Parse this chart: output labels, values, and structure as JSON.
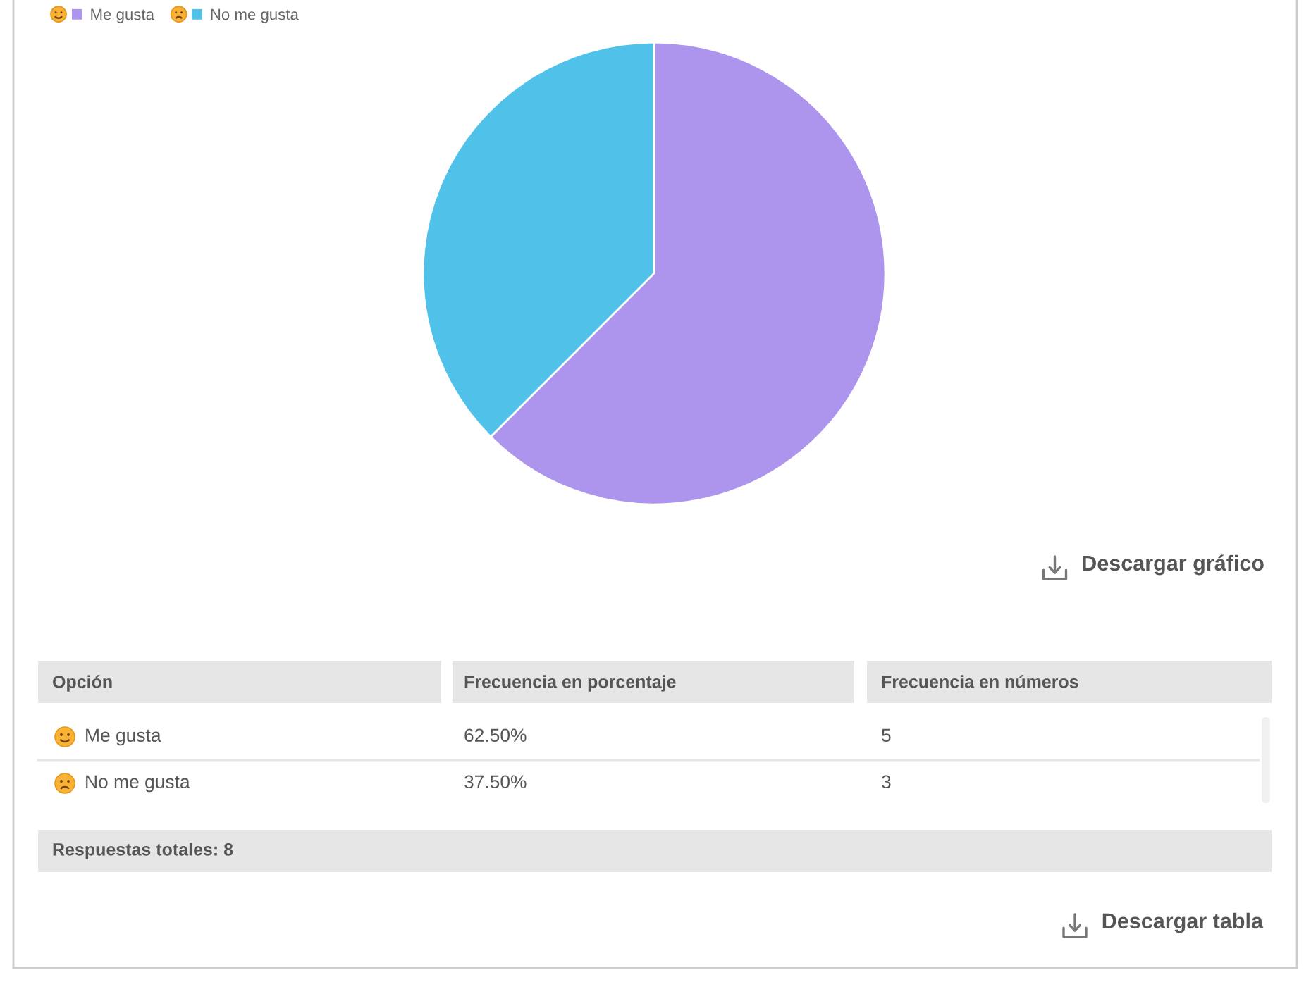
{
  "chart_data": {
    "type": "pie",
    "categories": [
      "Me gusta",
      "No me gusta"
    ],
    "values": [
      62.5,
      37.5
    ],
    "colors": [
      "#ad94ed",
      "#50c1e9"
    ],
    "legend": "top left",
    "annotations": [
      "Opción",
      "Frecuencia en porcentaje",
      "Frecuencia en números",
      "Me gusta",
      "62.50%",
      "5",
      "No me gusta",
      "37.50%",
      "3",
      "Respuestas totales: 8",
      "Descargar gráfico",
      "Descargar tabla"
    ]
  }
}
